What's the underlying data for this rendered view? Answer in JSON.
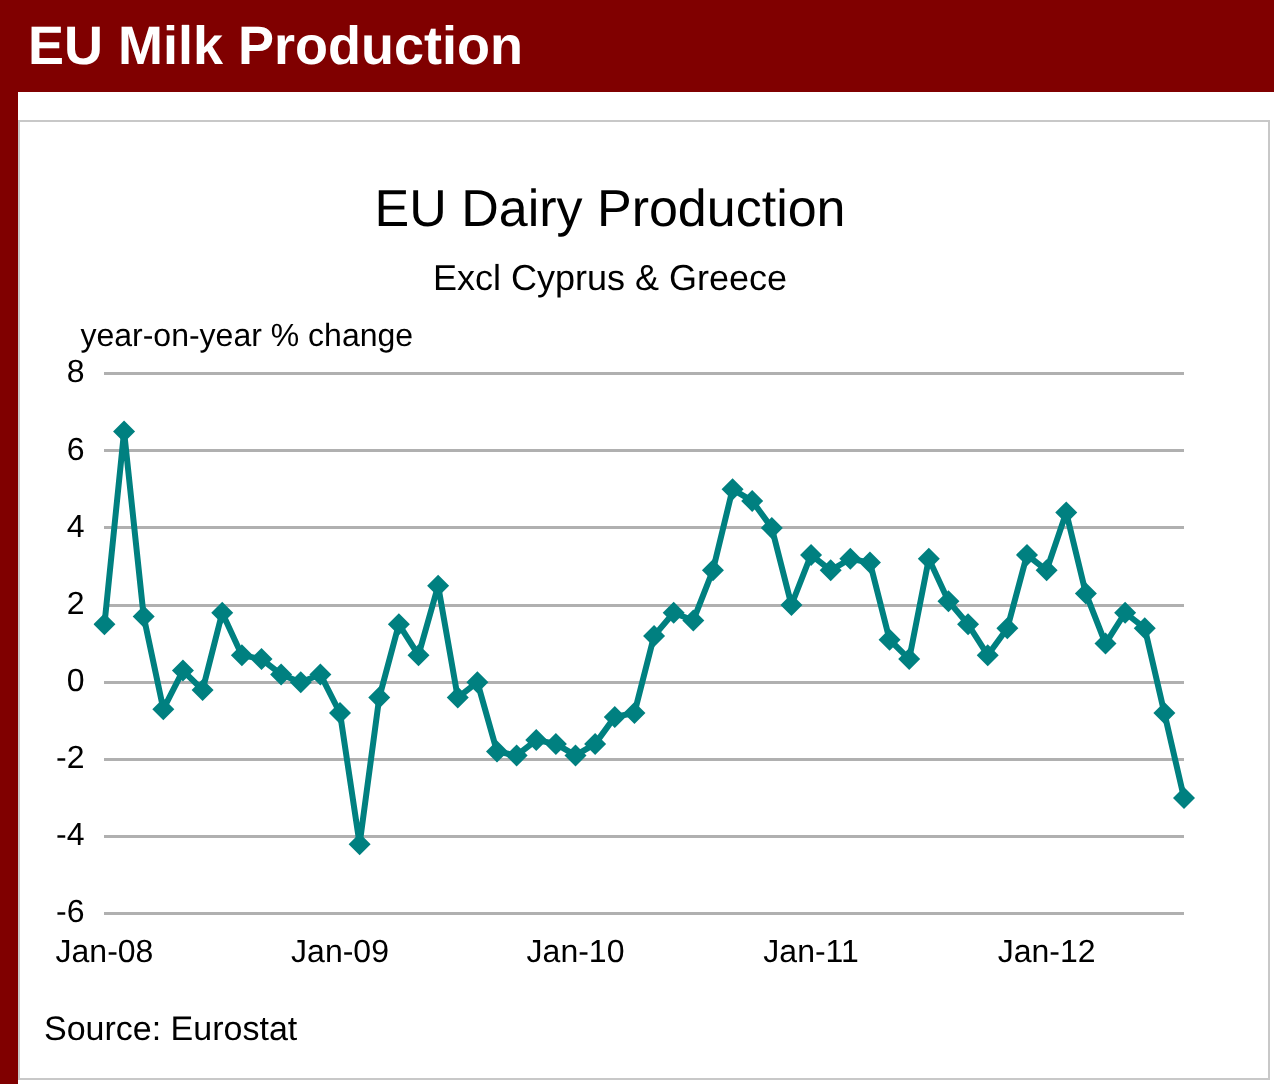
{
  "chart_data": {
    "type": "line",
    "title": "EU Dairy Production",
    "subtitle": "Excl Cyprus & Greece",
    "ylabel": "year-on-year % change",
    "annotations": [
      "EU Milk Production",
      "Source: Eurostat"
    ],
    "categories": [
      "Jan-08",
      null,
      null,
      null,
      null,
      null,
      null,
      null,
      null,
      null,
      null,
      null,
      "Jan-09",
      null,
      null,
      null,
      null,
      null,
      null,
      null,
      null,
      null,
      null,
      null,
      "Jan-10",
      null,
      null,
      null,
      null,
      null,
      null,
      null,
      null,
      null,
      null,
      null,
      "Jan-11",
      null,
      null,
      null,
      null,
      null,
      null,
      null,
      null,
      null,
      null,
      null,
      "Jan-12",
      null,
      null,
      null,
      null,
      null,
      null,
      null
    ],
    "series": [
      {
        "color": "#008080",
        "values": [
          1.5,
          6.5,
          1.7,
          -0.7,
          0.3,
          -0.2,
          1.8,
          0.7,
          0.6,
          0.2,
          0.0,
          0.2,
          -0.8,
          -4.2,
          -0.4,
          1.5,
          0.7,
          2.5,
          -0.4,
          0.0,
          -1.8,
          -1.9,
          -1.5,
          -1.6,
          -1.9,
          -1.6,
          -0.9,
          -0.8,
          1.2,
          1.8,
          1.6,
          2.9,
          5.0,
          4.7,
          4.0,
          2.0,
          3.3,
          2.9,
          3.2,
          3.1,
          1.1,
          0.6,
          3.2,
          2.1,
          1.5,
          0.7,
          1.4,
          3.3,
          2.9,
          4.4,
          2.3,
          1.0,
          1.8,
          1.4,
          -0.8,
          -3.0
        ]
      }
    ],
    "ylim": [
      -6,
      8
    ],
    "yticks": [
      -6,
      -4,
      -2,
      0,
      2,
      4,
      6,
      8
    ],
    "grid": "y",
    "legend": false,
    "marker": "diamond",
    "line_style": "solid"
  }
}
